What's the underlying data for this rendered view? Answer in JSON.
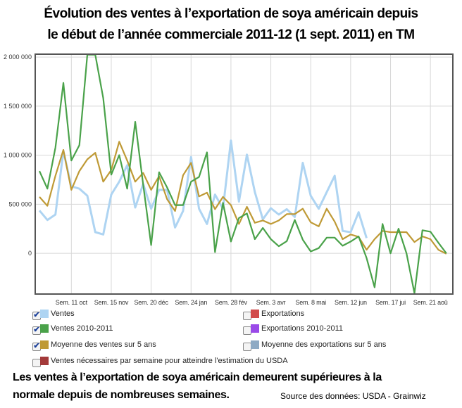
{
  "title_line1": "Évolution des ventes à l’exportation de soya américain depuis",
  "title_line2": "le début de l’année commerciale 2011-12 (1 sept. 2011) en TM",
  "chart_data": {
    "type": "line",
    "title": "Évolution des ventes à l’exportation de soya américain depuis le début de l’année commerciale 2011-12 (1 sept. 2011) en TM",
    "xlabel": "",
    "ylabel": "",
    "ylim": [
      -415000,
      2030000
    ],
    "yticks": [
      0,
      500000,
      1000000,
      1500000,
      2000000
    ],
    "ytick_labels": [
      "0",
      "500 000",
      "1 000 000",
      "1 500 000",
      "2 000 000"
    ],
    "xticks": [
      4,
      9,
      14,
      19,
      24,
      29,
      34,
      39,
      44,
      49
    ],
    "xtick_labels": [
      "Sem. 11 oct",
      "Sem. 15 nov",
      "Sem. 20 déc",
      "Sem. 24 jan",
      "Sem. 28 fév",
      "Sem. 3 avr",
      "Sem. 8 mai",
      "Sem. 12 jun",
      "Sem. 17 jui",
      "Sem. 21 aoû"
    ],
    "grid": true,
    "series": [
      {
        "name": "Ventes",
        "color": "#aed4f2",
        "values": [
          436000,
          340000,
          395000,
          1042000,
          683000,
          659000,
          587000,
          216000,
          192000,
          599000,
          730000,
          898000,
          467000,
          707000,
          455000,
          647000,
          647000,
          263000,
          431000,
          982000,
          455000,
          299000,
          599000,
          455000,
          1150000,
          527000,
          1006000,
          623000,
          347000,
          460000,
          395000,
          450000,
          371000,
          922000,
          587000,
          455000,
          623000,
          790000,
          228000,
          216000,
          419000,
          156000
        ]
      },
      {
        "name": "Ventes 2010-2011",
        "color": "#4aa24a",
        "values": [
          838000,
          659000,
          1078000,
          1737000,
          946000,
          1102000,
          2024000,
          2024000,
          1581000,
          802000,
          1001000,
          659000,
          1341000,
          700000,
          84000,
          826000,
          671000,
          491000,
          491000,
          730000,
          778000,
          1030000,
          12000,
          515000,
          120000,
          360000,
          407000,
          144000,
          259000,
          144000,
          72000,
          124000,
          340000,
          139000,
          19000,
          53000,
          160000,
          160000,
          77000,
          120000,
          172000,
          -48000,
          -347000,
          299000,
          0,
          251000,
          0,
          -407000,
          235000,
          220000,
          108000,
          0
        ]
      },
      {
        "name": "Moyenne des ventes sur 5 ans",
        "color": "#bf9a36",
        "values": [
          575000,
          484000,
          790000,
          1054000,
          647000,
          838000,
          958000,
          1025000,
          730000,
          850000,
          1138000,
          946000,
          730000,
          819000,
          647000,
          786000,
          551000,
          431000,
          795000,
          922000,
          580000,
          618000,
          450000,
          575000,
          491000,
          299000,
          474000,
          311000,
          335000,
          299000,
          335000,
          400000,
          400000,
          455000,
          316000,
          275000,
          455000,
          323000,
          144000,
          192000,
          168000,
          36000,
          144000,
          228000,
          216000,
          216000,
          216000,
          115000,
          172000,
          144000,
          36000,
          -5000
        ]
      }
    ],
    "legend": {
      "placement": "bottom",
      "items": [
        {
          "label": "Ventes",
          "color": "#aed4f2",
          "checked": true
        },
        {
          "label": "Exportations",
          "color": "#d14b4b",
          "checked": false
        },
        {
          "label": "Ventes 2010-2011",
          "color": "#4aa24a",
          "checked": true
        },
        {
          "label": "Exportations 2010-2011",
          "color": "#9a4ae8",
          "checked": false
        },
        {
          "label": "Moyenne des ventes sur 5 ans",
          "color": "#bf9a36",
          "checked": true
        },
        {
          "label": "Moyenne des exportations sur 5 ans",
          "color": "#8eaac4",
          "checked": false
        },
        {
          "label": "Ventes nécessaires par semaine pour atteindre l'estimation du USDA",
          "color": "#a33a3a",
          "checked": false
        }
      ]
    }
  },
  "bottom_line1": "Les ventes à l’exportation de soya américain demeurent supérieures à la",
  "bottom_line2": "normale depuis de nombreuses semaines.",
  "source": "Source des données: USDA - Grainwiz",
  "check_mark": "✔"
}
